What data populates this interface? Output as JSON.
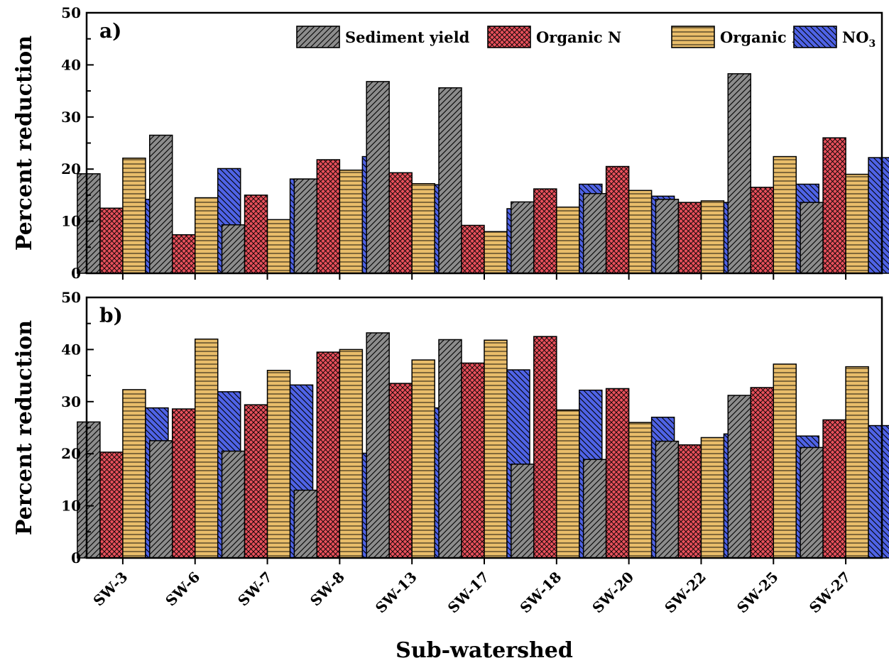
{
  "chart_data": [
    {
      "type": "bar",
      "panel_label": "a)",
      "ylabel": "Percent reduction",
      "ylim": [
        0,
        50
      ],
      "yticks": [
        "0",
        "10",
        "20",
        "30",
        "40",
        "50"
      ],
      "categories": [
        "SW-3",
        "SW-6",
        "SW-7",
        "SW-8",
        "SW-13",
        "SW-17",
        "SW-18",
        "SW-20",
        "SW-22",
        "SW-25",
        "SW-27"
      ],
      "series": [
        {
          "name": "Sediment yield",
          "values": [
            19.1,
            26.5,
            9.3,
            18.1,
            36.8,
            35.6,
            13.7,
            15.3,
            14.2,
            38.3,
            13.6
          ]
        },
        {
          "name": "Organic N",
          "values": [
            12.5,
            7.4,
            15.0,
            21.8,
            19.3,
            9.2,
            16.2,
            20.5,
            13.6,
            16.5,
            26.0
          ]
        },
        {
          "name": "Organic P",
          "values": [
            22.1,
            14.5,
            10.3,
            19.8,
            17.2,
            8.0,
            12.7,
            15.9,
            13.9,
            22.4,
            19.0
          ]
        },
        {
          "name": "NO3",
          "values": [
            14.2,
            20.1,
            18.1,
            22.4,
            17.0,
            12.4,
            17.1,
            14.8,
            13.6,
            17.1,
            22.2
          ]
        }
      ],
      "legend_placement": "top-right",
      "grid": false
    },
    {
      "type": "bar",
      "panel_label": "b)",
      "ylabel": "Percent reduction",
      "ylim": [
        0,
        50
      ],
      "yticks": [
        "0",
        "10",
        "20",
        "30",
        "40",
        "50"
      ],
      "xlabel": "Sub-watershed",
      "categories": [
        "SW-3",
        "SW-6",
        "SW-7",
        "SW-8",
        "SW-13",
        "SW-17",
        "SW-18",
        "SW-20",
        "SW-22",
        "SW-25",
        "SW-27"
      ],
      "series": [
        {
          "name": "Sediment yield",
          "values": [
            26.1,
            22.5,
            20.5,
            13.0,
            43.2,
            41.9,
            18.0,
            18.9,
            22.4,
            31.2,
            21.2
          ]
        },
        {
          "name": "Organic N",
          "values": [
            20.3,
            28.6,
            29.4,
            39.5,
            33.5,
            37.4,
            42.5,
            32.5,
            21.7,
            32.7,
            26.5
          ]
        },
        {
          "name": "Organic P",
          "values": [
            32.3,
            42.0,
            36.0,
            40.0,
            38.0,
            41.8,
            28.4,
            26.0,
            23.1,
            37.2,
            36.7
          ]
        },
        {
          "name": "NO3",
          "values": [
            28.8,
            31.9,
            33.2,
            20.1,
            28.8,
            36.1,
            32.2,
            27.0,
            23.8,
            23.4,
            25.4
          ]
        }
      ],
      "grid": false
    }
  ],
  "legend": {
    "items": [
      {
        "label": "Sediment yield",
        "fill": "#8c8c8c",
        "pattern": "diagonal"
      },
      {
        "label": "Organic N",
        "fill": "#e8505b",
        "pattern": "crosshatch"
      },
      {
        "label": "Organic P",
        "fill": "#e9bd6a",
        "pattern": "horizontal"
      },
      {
        "label": "NO",
        "subscript": "3",
        "fill": "#4f63e6",
        "pattern": "diagonal-rev"
      }
    ]
  },
  "colors": {
    "sediment": "#8c8c8c",
    "organic_n": "#e8505b",
    "organic_p": "#e9bd6a",
    "no3": "#4f63e6"
  }
}
